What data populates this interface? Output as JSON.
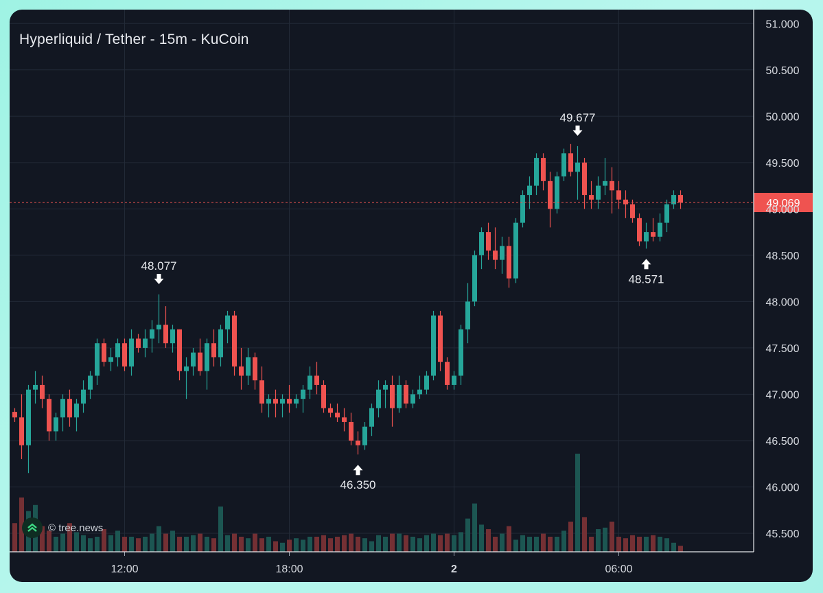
{
  "title": "Hyperliquid / Tether - 15m - KuCoin",
  "watermark": "© tree.news",
  "colors": {
    "up": "#26a69a",
    "down": "#ef5350",
    "price_line": "#ef5350",
    "background": "#121722"
  },
  "chart_data": {
    "type": "candlestick",
    "title": "Hyperliquid / Tether - 15m - KuCoin",
    "ylim": [
      45.3,
      51.15
    ],
    "y_ticks": [
      "51.000",
      "50.500",
      "50.000",
      "49.500",
      "49.000",
      "48.500",
      "48.000",
      "47.500",
      "47.000",
      "46.500",
      "46.000",
      "45.500"
    ],
    "x_ticks": [
      {
        "label": "12:00",
        "index": 16,
        "bold": false
      },
      {
        "label": "18:00",
        "index": 40,
        "bold": false
      },
      {
        "label": "2",
        "index": 64,
        "bold": true
      },
      {
        "label": "06:00",
        "index": 88,
        "bold": false
      }
    ],
    "current_price": "49.069",
    "current_price_value": 49.069,
    "annotations": [
      {
        "label": "48.077",
        "index": 21,
        "value": 48.077,
        "type": "high"
      },
      {
        "label": "46.350",
        "index": 50,
        "value": 46.35,
        "type": "low"
      },
      {
        "label": "49.677",
        "index": 82,
        "value": 49.677,
        "type": "high"
      },
      {
        "label": "48.571",
        "index": 92,
        "value": 48.571,
        "type": "low"
      }
    ],
    "candles": [
      [
        46.81,
        46.85,
        46.7,
        46.75,
        1.9
      ],
      [
        46.75,
        47.0,
        46.3,
        46.45,
        3.6
      ],
      [
        46.45,
        47.1,
        46.15,
        47.05,
        2.7
      ],
      [
        47.05,
        47.25,
        46.9,
        47.1,
        3.1
      ],
      [
        47.1,
        47.2,
        46.85,
        46.95,
        1.7
      ],
      [
        46.95,
        47.0,
        46.5,
        46.6,
        1.4
      ],
      [
        46.6,
        46.8,
        46.5,
        46.75,
        1.0
      ],
      [
        46.75,
        47.0,
        46.6,
        46.95,
        1.2
      ],
      [
        46.95,
        47.05,
        46.65,
        46.75,
        1.9
      ],
      [
        46.75,
        46.95,
        46.6,
        46.9,
        1.3
      ],
      [
        46.9,
        47.15,
        46.8,
        47.05,
        1.1
      ],
      [
        47.05,
        47.25,
        46.95,
        47.2,
        0.9
      ],
      [
        47.2,
        47.6,
        47.1,
        47.55,
        1.0
      ],
      [
        47.55,
        47.6,
        47.3,
        47.35,
        1.5
      ],
      [
        47.35,
        47.5,
        47.25,
        47.4,
        1.1
      ],
      [
        47.4,
        47.6,
        47.3,
        47.55,
        1.4
      ],
      [
        47.55,
        47.6,
        47.25,
        47.3,
        1.0
      ],
      [
        47.3,
        47.7,
        47.2,
        47.6,
        1.0
      ],
      [
        47.6,
        47.65,
        47.45,
        47.5,
        0.9
      ],
      [
        47.5,
        47.7,
        47.4,
        47.6,
        1.0
      ],
      [
        47.6,
        47.8,
        47.45,
        47.7,
        1.2
      ],
      [
        47.7,
        48.077,
        47.55,
        47.75,
        1.7
      ],
      [
        47.75,
        47.95,
        47.5,
        47.55,
        1.2
      ],
      [
        47.55,
        47.75,
        47.45,
        47.7,
        1.4
      ],
      [
        47.7,
        47.7,
        47.15,
        47.25,
        1.0
      ],
      [
        47.25,
        47.4,
        46.95,
        47.3,
        1.0
      ],
      [
        47.3,
        47.5,
        47.2,
        47.45,
        1.1
      ],
      [
        47.45,
        47.6,
        47.2,
        47.25,
        1.2
      ],
      [
        47.25,
        47.6,
        47.05,
        47.55,
        1.0
      ],
      [
        47.55,
        47.7,
        47.3,
        47.4,
        0.9
      ],
      [
        47.4,
        47.75,
        47.3,
        47.7,
        3.0
      ],
      [
        47.7,
        47.9,
        47.55,
        47.85,
        1.1
      ],
      [
        47.85,
        47.9,
        47.2,
        47.3,
        1.2
      ],
      [
        47.3,
        47.5,
        47.05,
        47.2,
        1.0
      ],
      [
        47.2,
        47.5,
        47.1,
        47.4,
        0.9
      ],
      [
        47.4,
        47.45,
        47.05,
        47.15,
        1.2
      ],
      [
        47.15,
        47.3,
        46.8,
        46.9,
        0.9
      ],
      [
        46.9,
        47.0,
        46.75,
        46.95,
        1.0
      ],
      [
        46.95,
        47.05,
        46.75,
        46.9,
        0.7
      ],
      [
        46.9,
        47.0,
        46.75,
        46.95,
        0.6
      ],
      [
        46.95,
        47.1,
        46.8,
        46.9,
        0.8
      ],
      [
        46.9,
        47.0,
        46.85,
        46.95,
        0.9
      ],
      [
        46.95,
        47.1,
        46.8,
        47.05,
        0.8
      ],
      [
        47.05,
        47.3,
        46.95,
        47.2,
        1.0
      ],
      [
        47.2,
        47.35,
        47.0,
        47.1,
        1.0
      ],
      [
        47.1,
        47.15,
        46.8,
        46.85,
        1.1
      ],
      [
        46.85,
        46.9,
        46.75,
        46.8,
        0.9
      ],
      [
        46.8,
        46.9,
        46.7,
        46.75,
        1.0
      ],
      [
        46.75,
        46.85,
        46.6,
        46.7,
        1.1
      ],
      [
        46.7,
        46.8,
        46.45,
        46.5,
        1.2
      ],
      [
        46.5,
        46.6,
        46.35,
        46.45,
        1.0
      ],
      [
        46.45,
        46.7,
        46.4,
        46.65,
        0.9
      ],
      [
        46.65,
        46.9,
        46.55,
        46.85,
        0.7
      ],
      [
        46.85,
        47.15,
        46.75,
        47.05,
        1.1
      ],
      [
        47.05,
        47.15,
        46.85,
        47.1,
        1.0
      ],
      [
        47.1,
        47.2,
        46.65,
        46.85,
        1.2
      ],
      [
        46.85,
        47.2,
        46.8,
        47.1,
        1.2
      ],
      [
        47.1,
        47.15,
        46.85,
        46.9,
        1.1
      ],
      [
        46.9,
        47.05,
        46.85,
        47.0,
        1.0
      ],
      [
        47.0,
        47.2,
        46.95,
        47.05,
        0.9
      ],
      [
        47.05,
        47.25,
        47.0,
        47.2,
        1.1
      ],
      [
        47.2,
        47.9,
        47.15,
        47.85,
        1.2
      ],
      [
        47.85,
        47.9,
        47.25,
        47.35,
        1.1
      ],
      [
        47.35,
        47.4,
        47.05,
        47.1,
        1.2
      ],
      [
        47.1,
        47.25,
        47.05,
        47.2,
        1.1
      ],
      [
        47.2,
        47.75,
        47.1,
        47.7,
        1.3
      ],
      [
        47.7,
        48.2,
        47.55,
        48.0,
        2.2
      ],
      [
        48.0,
        48.55,
        47.95,
        48.5,
        3.2
      ],
      [
        48.5,
        48.8,
        48.35,
        48.75,
        1.8
      ],
      [
        48.75,
        48.85,
        48.45,
        48.55,
        1.5
      ],
      [
        48.55,
        48.8,
        48.35,
        48.45,
        1.0
      ],
      [
        48.45,
        48.7,
        48.3,
        48.6,
        1.2
      ],
      [
        48.6,
        48.7,
        48.15,
        48.25,
        1.7
      ],
      [
        48.25,
        48.9,
        48.2,
        48.85,
        0.8
      ],
      [
        48.85,
        49.2,
        48.8,
        49.15,
        1.1
      ],
      [
        49.15,
        49.35,
        49.0,
        49.25,
        1.0
      ],
      [
        49.25,
        49.6,
        49.15,
        49.55,
        1.0
      ],
      [
        49.55,
        49.6,
        49.2,
        49.3,
        1.2
      ],
      [
        49.3,
        49.4,
        48.8,
        49.0,
        1.0
      ],
      [
        49.0,
        49.4,
        48.95,
        49.35,
        1.0
      ],
      [
        49.35,
        49.65,
        49.3,
        49.6,
        1.4
      ],
      [
        49.6,
        49.7,
        49.35,
        49.4,
        2.0
      ],
      [
        49.4,
        49.677,
        49.1,
        49.5,
        6.5
      ],
      [
        49.5,
        49.55,
        49.0,
        49.15,
        2.3
      ],
      [
        49.15,
        49.3,
        49.0,
        49.1,
        1.0
      ],
      [
        49.1,
        49.35,
        49.0,
        49.25,
        1.5
      ],
      [
        49.25,
        49.55,
        49.15,
        49.3,
        1.6
      ],
      [
        49.3,
        49.45,
        48.95,
        49.2,
        2.0
      ],
      [
        49.2,
        49.3,
        49.0,
        49.1,
        1.0
      ],
      [
        49.1,
        49.2,
        48.9,
        49.05,
        0.9
      ],
      [
        49.05,
        49.1,
        48.85,
        48.9,
        1.1
      ],
      [
        48.9,
        48.95,
        48.6,
        48.65,
        1.0
      ],
      [
        48.65,
        48.85,
        48.571,
        48.75,
        1.0
      ],
      [
        48.75,
        48.9,
        48.65,
        48.7,
        1.1
      ],
      [
        48.7,
        48.95,
        48.65,
        48.85,
        1.0
      ],
      [
        48.85,
        49.1,
        48.75,
        49.05,
        0.9
      ],
      [
        49.05,
        49.2,
        49.0,
        49.15,
        0.6
      ],
      [
        49.15,
        49.2,
        49.0,
        49.069,
        0.4
      ]
    ]
  }
}
